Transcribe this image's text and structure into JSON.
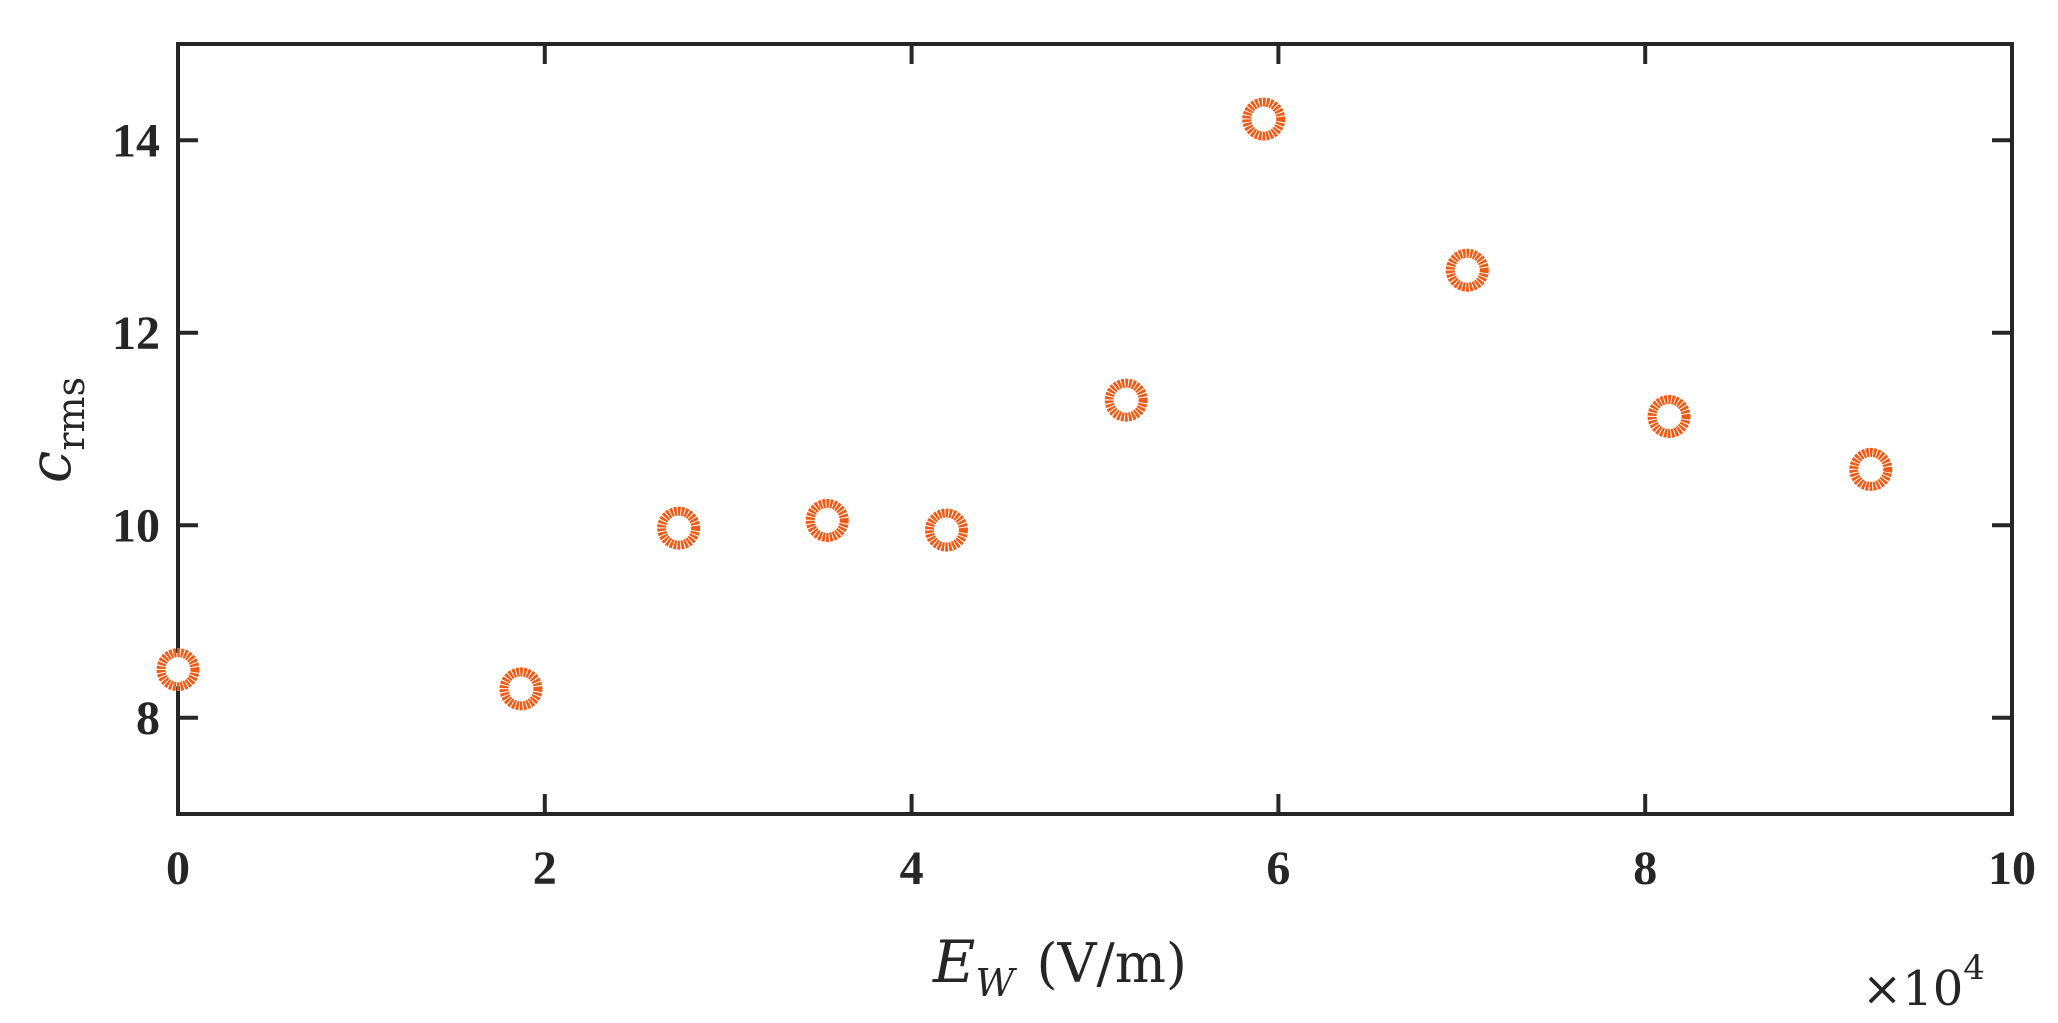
{
  "chart_data": {
    "type": "scatter",
    "x": [
      0.0,
      1.87,
      2.73,
      3.54,
      4.19,
      5.17,
      5.92,
      7.03,
      8.13,
      9.23
    ],
    "y": [
      8.5,
      8.3,
      9.97,
      10.05,
      9.95,
      11.3,
      14.22,
      12.65,
      11.13,
      10.58
    ],
    "xlim": [
      0,
      10
    ],
    "ylim": [
      7,
      15
    ],
    "xticks": [
      0,
      2,
      4,
      6,
      8,
      10
    ],
    "yticks": [
      8,
      10,
      12,
      14
    ],
    "xtick_labels": [
      "0",
      "2",
      "4",
      "6",
      "8",
      "10"
    ],
    "ytick_labels": [
      "8",
      "10",
      "12",
      "14"
    ],
    "xlabel": {
      "main": "E",
      "sub": "W",
      "unit": "(V/m)"
    },
    "ylabel": {
      "main": "c",
      "sub": "rms"
    },
    "x_multiplier": {
      "base": "×10",
      "exponent": "4"
    },
    "marker": "open-circle",
    "marker_color": "#f05a14",
    "axis_color": "#262626",
    "grid": false,
    "legend": "none"
  }
}
